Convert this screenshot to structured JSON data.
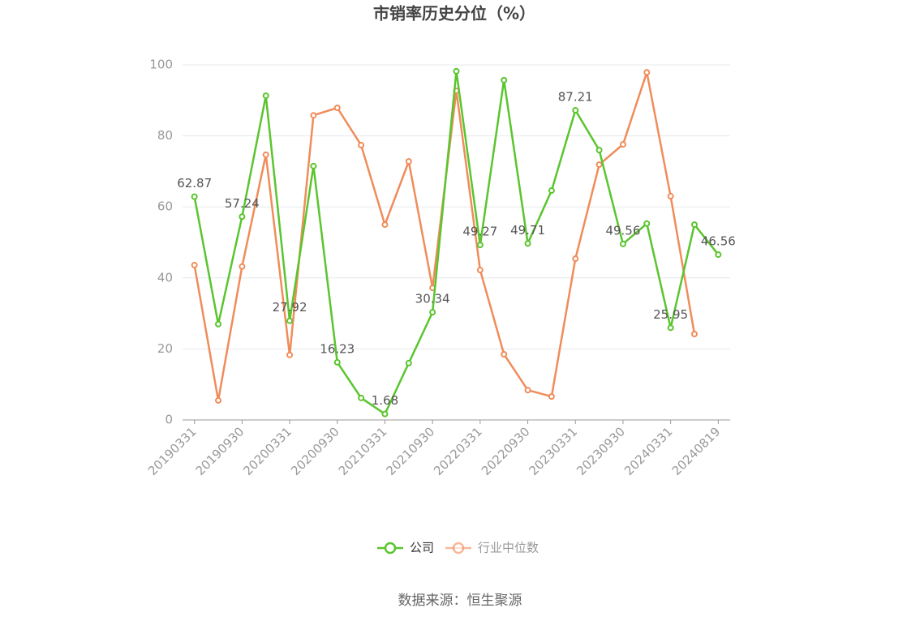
{
  "chart_data": {
    "type": "line",
    "title": "市销率历史分位（%）",
    "source": "数据来源：恒生聚源",
    "categories": [
      "20190331",
      null,
      "20190930",
      null,
      "20200331",
      null,
      "20200930",
      null,
      "20210331",
      null,
      "20210930",
      null,
      "20220331",
      null,
      "20220930",
      null,
      "20230331",
      null,
      "20230930",
      null,
      "20240331",
      null,
      "20240819"
    ],
    "series": [
      {
        "name": "公司",
        "color": "#5ac52e",
        "values": [
          62.87,
          27,
          57.24,
          91.3,
          27.92,
          71.5,
          16.23,
          6.2,
          1.68,
          16.0,
          30.34,
          98.2,
          49.27,
          95.7,
          49.71,
          64.6,
          87.21,
          76.0,
          49.56,
          55.3,
          25.95,
          55.0,
          46.56
        ],
        "value_labels": [
          "62.87",
          null,
          "57.24",
          null,
          "27.92",
          null,
          "16.23",
          null,
          "1.68",
          null,
          "30.34",
          null,
          "49.27",
          null,
          "49.71",
          null,
          "87.21",
          null,
          "49.56",
          null,
          "25.95",
          null,
          "46.56"
        ]
      },
      {
        "name": "行业中位数",
        "color": "#f08c5a",
        "values": [
          43.6,
          5.5,
          43.2,
          74.7,
          18.3,
          85.8,
          87.9,
          77.4,
          55.0,
          72.8,
          37.2,
          92.7,
          42.2,
          18.5,
          8.4,
          6.6,
          45.4,
          71.9,
          77.6,
          97.9,
          63.0,
          24.2,
          null
        ]
      }
    ],
    "ylim": [
      0,
      100
    ],
    "yticks": [
      0,
      20,
      40,
      60,
      80,
      100
    ],
    "grid": true
  }
}
